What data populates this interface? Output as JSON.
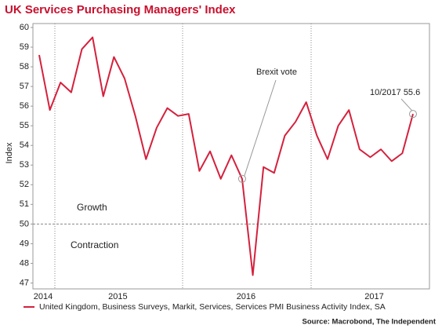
{
  "chart_data": {
    "type": "line",
    "title": "UK Services Purchasing Managers' Index",
    "y_label": "Index",
    "categories": [
      "2014",
      null,
      null,
      null,
      null,
      null,
      null,
      "2015",
      null,
      null,
      null,
      null,
      null,
      null,
      null,
      null,
      null,
      null,
      null,
      "2016",
      null,
      null,
      null,
      null,
      null,
      null,
      null,
      null,
      null,
      null,
      null,
      "2017",
      null,
      null,
      null,
      null
    ],
    "series": [
      {
        "name": "United Kingdom, Business Surveys, Markit, Services, Services PMI Business Activity Index, SA",
        "color": "#d4213d",
        "values": [
          58.6,
          55.8,
          57.2,
          56.7,
          58.9,
          59.5,
          56.5,
          58.5,
          57.4,
          55.5,
          53.3,
          54.9,
          55.9,
          55.5,
          55.6,
          52.7,
          53.7,
          52.3,
          53.5,
          52.3,
          47.4,
          52.9,
          52.6,
          54.5,
          55.2,
          56.2,
          54.5,
          53.3,
          55.0,
          55.8,
          53.8,
          53.4,
          53.8,
          53.2,
          53.6,
          55.6
        ]
      }
    ],
    "ylim": [
      46.7,
      60.2
    ],
    "yticks": [
      47,
      48,
      49,
      50,
      51,
      52,
      53,
      54,
      55,
      56,
      57,
      58,
      59,
      60
    ],
    "reference_line": 50,
    "annotations": [
      {
        "text": "Brexit vote",
        "index": 19
      },
      {
        "text": "10/2017 55.6",
        "index": 35
      }
    ],
    "region_labels": [
      "Growth",
      "Contraction"
    ],
    "source": "Source: Macrobond, The Independent"
  }
}
